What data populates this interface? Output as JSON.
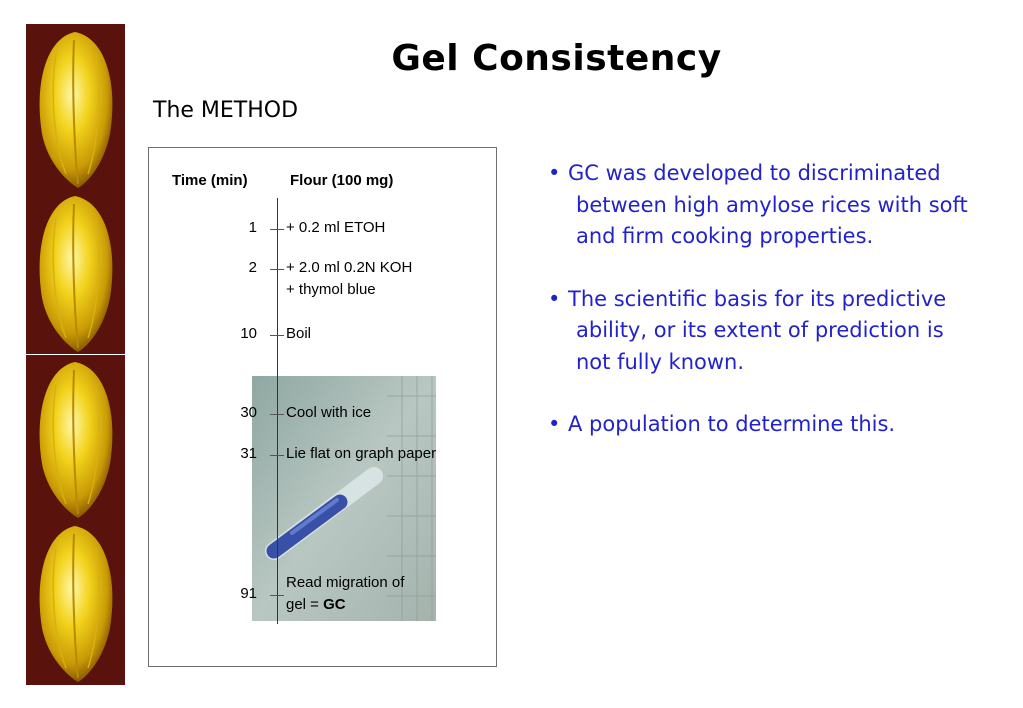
{
  "slide": {
    "title": "Gel Consistency",
    "subtitle": "The METHOD"
  },
  "method_table": {
    "header_time": "Time (min)",
    "header_flour": "Flour (100 mg)",
    "steps": [
      {
        "time": "1",
        "line1": "+ 0.2 ml ETOH",
        "line2": ""
      },
      {
        "time": "2",
        "line1": "+ 2.0 ml 0.2N KOH",
        "line2": "+ thymol blue"
      },
      {
        "time": "10",
        "line1": "Boil",
        "line2": ""
      },
      {
        "time": "30",
        "line1": "Cool with ice",
        "line2": ""
      },
      {
        "time": "31",
        "line1": "Lie flat on graph paper",
        "line2": ""
      },
      {
        "time": "91",
        "line1": "Read migration of",
        "line2_prefix": "gel = ",
        "line2_bold": "GC"
      }
    ]
  },
  "bullets": [
    {
      "dot": "•",
      "text": "GC was developed to discriminated between high amylose rices with soft and firm cooking properties."
    },
    {
      "dot": "•",
      "text": "The scientific basis for its predictive ability, or its extent of prediction is not fully known."
    },
    {
      "dot": "•",
      "text": "A population to determine this."
    }
  ],
  "colors": {
    "bullet_text": "#2222cc",
    "strip_background": "#5a120c",
    "grain_yellow": "#f2d21b"
  }
}
